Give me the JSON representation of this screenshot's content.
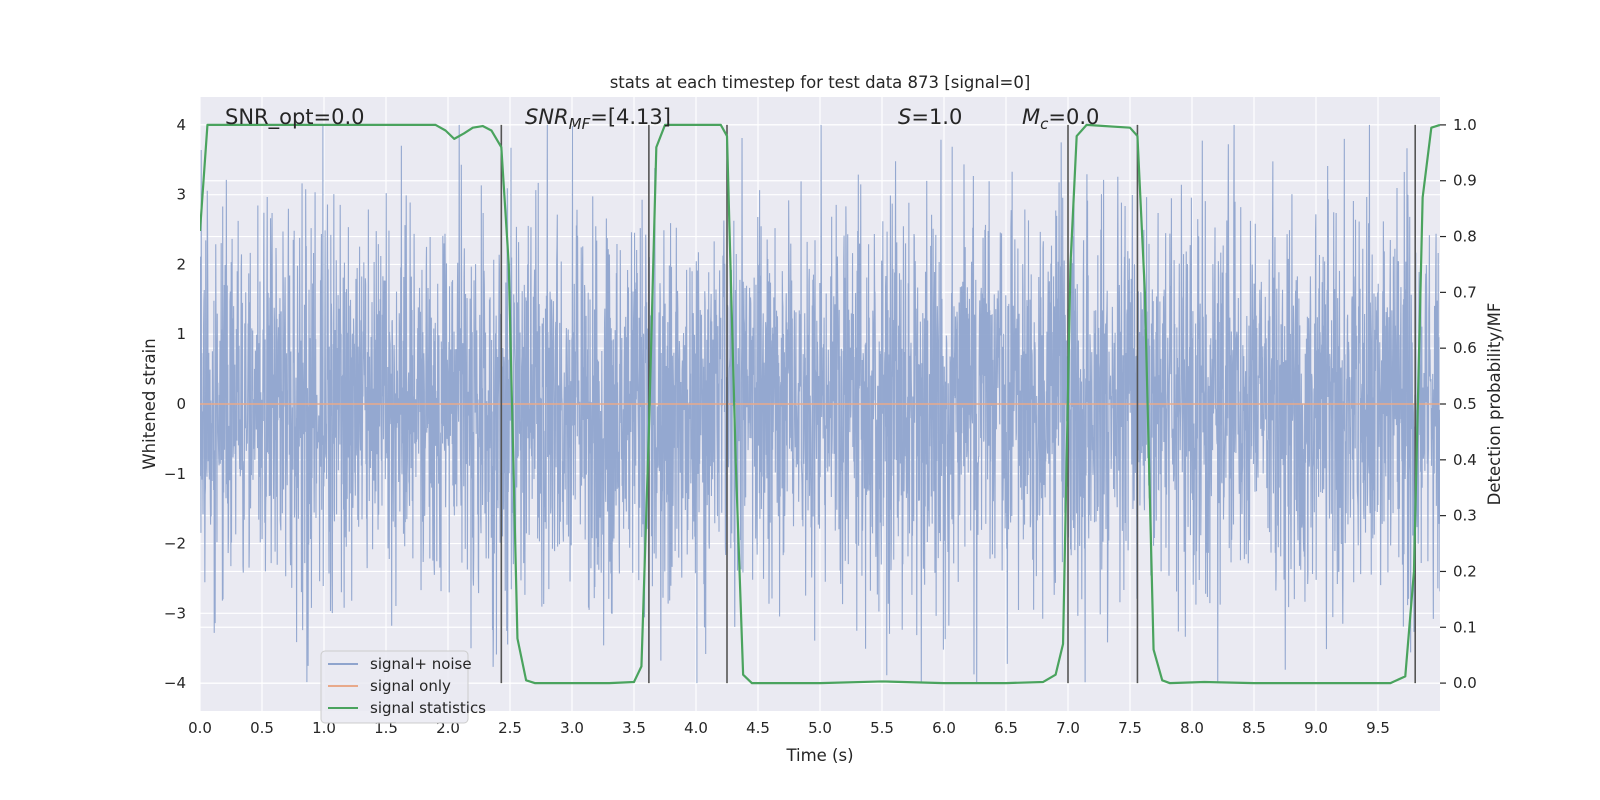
{
  "chart_data": {
    "type": "line",
    "title": "stats at each timestep for test data 873 [signal=0]",
    "xlabel": "Time (s)",
    "ylabel": "Whitened strain",
    "y2label": "Detection probability/MF",
    "xlim": [
      0.0,
      10.0
    ],
    "ylim": [
      -4.4,
      4.4
    ],
    "y2lim": [
      -0.05,
      1.05
    ],
    "xticks": [
      0.0,
      0.5,
      1.0,
      1.5,
      2.0,
      2.5,
      3.0,
      3.5,
      4.0,
      4.5,
      5.0,
      5.5,
      6.0,
      6.5,
      7.0,
      7.5,
      8.0,
      8.5,
      9.0,
      9.5
    ],
    "xtick_labels": [
      "0.0",
      "0.5",
      "1.0",
      "1.5",
      "2.0",
      "2.5",
      "3.0",
      "3.5",
      "4.0",
      "4.5",
      "5.0",
      "5.5",
      "6.0",
      "6.5",
      "7.0",
      "7.5",
      "8.0",
      "8.5",
      "9.0",
      "9.5"
    ],
    "yticks": [
      -4,
      -3,
      -2,
      -1,
      0,
      1,
      2,
      3,
      4
    ],
    "ytick_labels": [
      "−4",
      "−3",
      "−2",
      "−1",
      "0",
      "1",
      "2",
      "3",
      "4"
    ],
    "y2ticks": [
      0.0,
      0.1,
      0.2,
      0.3,
      0.4,
      0.5,
      0.6,
      0.7,
      0.8,
      0.9,
      1.0
    ],
    "y2tick_labels": [
      "0.0",
      "0.1",
      "0.2",
      "0.3",
      "0.4",
      "0.5",
      "0.6",
      "0.7",
      "0.8",
      "0.9",
      "1.0"
    ],
    "grid": true,
    "legend": {
      "placement": "lower-left",
      "entries": [
        "signal+ noise",
        "signal only",
        "signal statistics"
      ]
    },
    "annotations": {
      "snr_opt": "SNR_opt=0.0",
      "snr_mf_main": "SNR",
      "snr_mf_sub": "MF",
      "snr_mf_value": "=[4.13]",
      "s_main": "S",
      "s_value": "=1.0",
      "mc_main": "M",
      "mc_sub": "c",
      "mc_value": "=0.0"
    },
    "series": [
      {
        "name": "signal+ noise",
        "axis": "left",
        "color": "#8fa4cd",
        "style": "dense noise trace",
        "x_range": [
          0.0,
          10.0
        ],
        "typical_band": [
          -2.2,
          2.5
        ],
        "extreme_range": [
          -4.0,
          4.0
        ]
      },
      {
        "name": "signal only",
        "axis": "left",
        "color": "#e8a98a",
        "y_constant": 0.0
      },
      {
        "name": "signal statistics",
        "axis": "right",
        "color": "#4aa35e",
        "x": [
          0.0,
          0.06,
          0.12,
          0.3,
          0.5,
          1.0,
          1.5,
          1.9,
          1.98,
          2.05,
          2.13,
          2.2,
          2.28,
          2.35,
          2.43,
          2.49,
          2.56,
          2.63,
          2.7,
          3.0,
          3.3,
          3.5,
          3.56,
          3.62,
          3.68,
          3.75,
          4.0,
          4.2,
          4.25,
          4.32,
          4.38,
          4.45,
          5.0,
          5.5,
          6.0,
          6.5,
          6.8,
          6.9,
          6.96,
          7.02,
          7.07,
          7.15,
          7.5,
          7.56,
          7.62,
          7.69,
          7.76,
          7.82,
          8.1,
          8.5,
          9.0,
          9.6,
          9.72,
          9.79,
          9.86,
          9.93,
          10.0
        ],
        "y": [
          0.81,
          1.0,
          1.0,
          1.0,
          1.0,
          1.0,
          1.0,
          1.0,
          0.99,
          0.975,
          0.985,
          0.995,
          0.998,
          0.99,
          0.96,
          0.75,
          0.08,
          0.005,
          0.0,
          0.0,
          0.0,
          0.002,
          0.03,
          0.45,
          0.96,
          1.0,
          1.0,
          1.0,
          0.98,
          0.4,
          0.015,
          0.0,
          0.0,
          0.003,
          0.0,
          0.0,
          0.002,
          0.015,
          0.07,
          0.75,
          0.98,
          1.0,
          0.995,
          0.98,
          0.7,
          0.06,
          0.005,
          0.0,
          0.002,
          0.0,
          0.0,
          0.0,
          0.012,
          0.2,
          0.87,
          0.995,
          1.0
        ]
      }
    ],
    "vertical_markers": [
      2.43,
      3.62,
      4.25,
      7.0,
      7.56,
      9.8
    ],
    "colors": {
      "plot_background": "#eaeaf2",
      "grid": "#ffffff",
      "marker_lines": "#555555"
    }
  }
}
